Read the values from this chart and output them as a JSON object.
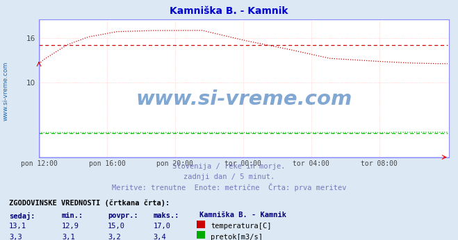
{
  "title": "Kamniška B. - Kamnik",
  "title_color": "#0000cc",
  "bg_color": "#dce9f5",
  "plot_bg_color": "#ffffff",
  "grid_color": "#ffbbbb",
  "watermark_text": "www.si-vreme.com",
  "watermark_color": "#1a5fb0",
  "x_tick_labels": [
    "pon 12:00",
    "pon 16:00",
    "pon 20:00",
    "tor 00:00",
    "tor 04:00",
    "tor 08:00"
  ],
  "x_tick_positions": [
    0,
    48,
    96,
    144,
    192,
    240
  ],
  "y_ticks": [
    10,
    16
  ],
  "ylim": [
    0,
    18.5
  ],
  "xlim": [
    0,
    289
  ],
  "temp_color": "#cc0000",
  "flow_color": "#00bb00",
  "subtitle_lines": [
    "Slovenija / reke in morje.",
    "zadnji dan / 5 minut.",
    "Meritve: trenutne  Enote: metrične  Črta: prva meritev"
  ],
  "subtitle_color": "#7777bb",
  "table_header": "ZGODOVINSKE VREDNOSTI (črtkana črta):",
  "table_cols": [
    "sedaj:",
    "min.:",
    "povpr.:",
    "maks.:"
  ],
  "table_col_header": "Kamniška B. - Kamnik",
  "table_col_color": "#000077",
  "row1_vals": [
    "13,1",
    "12,9",
    "15,0",
    "17,0"
  ],
  "row2_vals": [
    "3,3",
    "3,1",
    "3,2",
    "3,4"
  ],
  "row1_label": "temperatura[C]",
  "row2_label": "pretok[m3/s]",
  "row1_icon_color": "#cc0000",
  "row2_icon_color": "#00aa00",
  "left_label": "www.si-vreme.com",
  "left_label_color": "#1a6ab5",
  "avg_temp": 15.0,
  "avg_flow": 3.2,
  "border_color": "#8888ff"
}
